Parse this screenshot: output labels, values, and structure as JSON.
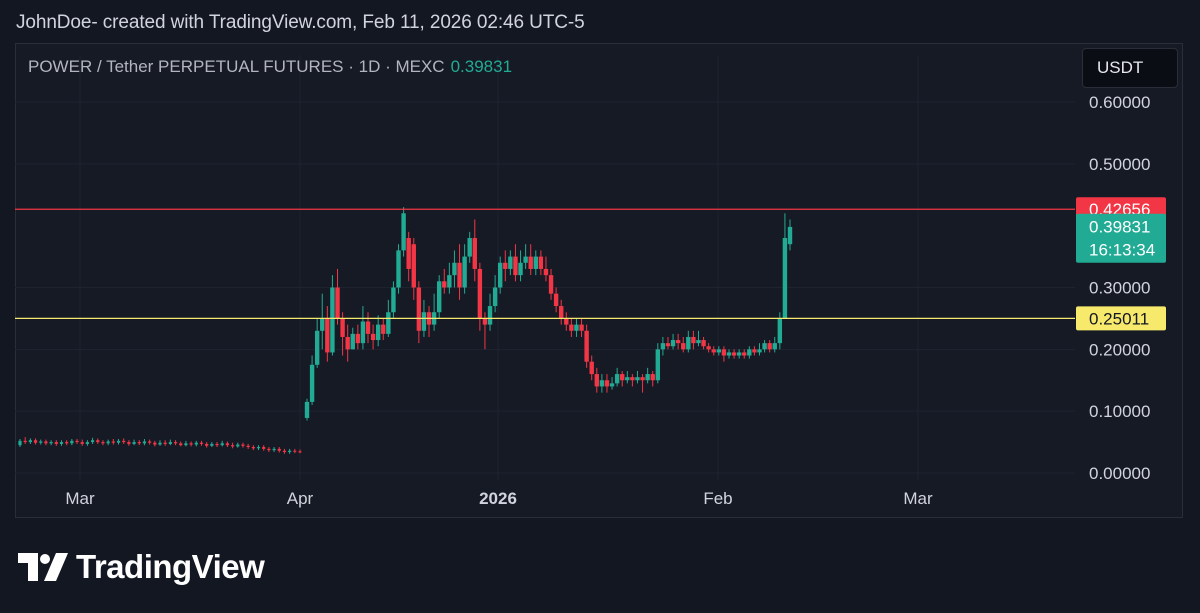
{
  "header": {
    "caption": "JohnDoe- created with TradingView.com, Feb 11, 2026 02:46 UTC-5"
  },
  "symbol": {
    "description": "POWER / Tether PERPETUAL FUTURES · 1D · MEXC",
    "last_price": "0.39831"
  },
  "currency_button": "USDT",
  "branding": {
    "logo_text": "TradingView",
    "logo_icon": "tradingview-logo-icon"
  },
  "colors": {
    "up": "#22ab94",
    "down": "#f23645",
    "background": "#131722",
    "resistance_line": "#f23645",
    "support_line": "#f7e96b",
    "axis_text": "#d1d4dc"
  },
  "chart_data": {
    "type": "candlestick",
    "title": "POWER / Tether PERPETUAL FUTURES · 1D · MEXC",
    "ylim": [
      0,
      0.62
    ],
    "y_ticks": [
      "0.60000",
      "0.50000",
      "0.30000",
      "0.20000",
      "0.10000",
      "0.00000"
    ],
    "x_ticks": [
      "Mar",
      "Apr",
      "2026",
      "Feb",
      "Mar"
    ],
    "horizontal_lines": [
      {
        "label": "0.42656",
        "value": 0.42656,
        "color": "#f23645",
        "label_bg": "#f23645",
        "label_color": "#ffffff"
      },
      {
        "label": "0.25011",
        "value": 0.25011,
        "color": "#f7e96b",
        "label_bg": "#f7e96b",
        "label_color": "#131722"
      }
    ],
    "last_price_label": {
      "price": "0.39831",
      "countdown": "16:13:34",
      "value": 0.39831
    },
    "candles": [
      [
        0.045,
        0.052,
        0.055,
        0.042
      ],
      [
        0.052,
        0.05,
        0.058,
        0.047
      ],
      [
        0.05,
        0.053,
        0.056,
        0.047
      ],
      [
        0.053,
        0.049,
        0.056,
        0.046
      ],
      [
        0.049,
        0.051,
        0.054,
        0.046
      ],
      [
        0.051,
        0.048,
        0.054,
        0.045
      ],
      [
        0.048,
        0.05,
        0.053,
        0.045
      ],
      [
        0.05,
        0.047,
        0.053,
        0.044
      ],
      [
        0.047,
        0.05,
        0.053,
        0.044
      ],
      [
        0.05,
        0.048,
        0.053,
        0.045
      ],
      [
        0.048,
        0.052,
        0.055,
        0.045
      ],
      [
        0.052,
        0.05,
        0.055,
        0.047
      ],
      [
        0.05,
        0.047,
        0.054,
        0.044
      ],
      [
        0.047,
        0.05,
        0.053,
        0.044
      ],
      [
        0.05,
        0.053,
        0.057,
        0.047
      ],
      [
        0.053,
        0.05,
        0.056,
        0.047
      ],
      [
        0.05,
        0.048,
        0.053,
        0.045
      ],
      [
        0.048,
        0.051,
        0.054,
        0.045
      ],
      [
        0.051,
        0.049,
        0.055,
        0.046
      ],
      [
        0.049,
        0.052,
        0.055,
        0.046
      ],
      [
        0.052,
        0.05,
        0.056,
        0.047
      ],
      [
        0.05,
        0.047,
        0.053,
        0.044
      ],
      [
        0.047,
        0.05,
        0.054,
        0.045
      ],
      [
        0.05,
        0.048,
        0.053,
        0.045
      ],
      [
        0.048,
        0.051,
        0.055,
        0.045
      ],
      [
        0.051,
        0.049,
        0.054,
        0.046
      ],
      [
        0.049,
        0.046,
        0.052,
        0.043
      ],
      [
        0.046,
        0.049,
        0.053,
        0.044
      ],
      [
        0.049,
        0.047,
        0.053,
        0.044
      ],
      [
        0.047,
        0.05,
        0.054,
        0.045
      ],
      [
        0.05,
        0.048,
        0.053,
        0.045
      ],
      [
        0.048,
        0.045,
        0.051,
        0.043
      ],
      [
        0.045,
        0.048,
        0.052,
        0.043
      ],
      [
        0.048,
        0.046,
        0.051,
        0.043
      ],
      [
        0.046,
        0.049,
        0.052,
        0.043
      ],
      [
        0.049,
        0.047,
        0.052,
        0.044
      ],
      [
        0.047,
        0.044,
        0.05,
        0.041
      ],
      [
        0.044,
        0.047,
        0.05,
        0.042
      ],
      [
        0.047,
        0.045,
        0.05,
        0.042
      ],
      [
        0.045,
        0.048,
        0.052,
        0.043
      ],
      [
        0.048,
        0.045,
        0.051,
        0.042
      ],
      [
        0.045,
        0.043,
        0.049,
        0.04
      ],
      [
        0.043,
        0.046,
        0.049,
        0.041
      ],
      [
        0.046,
        0.044,
        0.049,
        0.041
      ],
      [
        0.044,
        0.042,
        0.047,
        0.039
      ],
      [
        0.042,
        0.04,
        0.045,
        0.037
      ],
      [
        0.04,
        0.042,
        0.045,
        0.037
      ],
      [
        0.042,
        0.039,
        0.045,
        0.036
      ],
      [
        0.039,
        0.037,
        0.042,
        0.034
      ],
      [
        0.037,
        0.039,
        0.042,
        0.034
      ],
      [
        0.039,
        0.036,
        0.042,
        0.033
      ],
      [
        0.036,
        0.034,
        0.039,
        0.031
      ],
      [
        0.034,
        0.036,
        0.039,
        0.031
      ],
      [
        0.036,
        0.035,
        0.039,
        0.032
      ],
      [
        0.035,
        0.034,
        0.038,
        0.032
      ],
      [
        0.089,
        0.115,
        0.12,
        0.085
      ],
      [
        0.115,
        0.175,
        0.19,
        0.11
      ],
      [
        0.175,
        0.23,
        0.25,
        0.17
      ],
      [
        0.23,
        0.25,
        0.29,
        0.2
      ],
      [
        0.25,
        0.195,
        0.27,
        0.18
      ],
      [
        0.195,
        0.3,
        0.32,
        0.19
      ],
      [
        0.3,
        0.25,
        0.33,
        0.24
      ],
      [
        0.25,
        0.22,
        0.26,
        0.19
      ],
      [
        0.22,
        0.2,
        0.24,
        0.18
      ],
      [
        0.2,
        0.225,
        0.235,
        0.2
      ],
      [
        0.225,
        0.21,
        0.24,
        0.2
      ],
      [
        0.21,
        0.245,
        0.27,
        0.2
      ],
      [
        0.245,
        0.225,
        0.26,
        0.21
      ],
      [
        0.225,
        0.215,
        0.24,
        0.2
      ],
      [
        0.215,
        0.24,
        0.255,
        0.205
      ],
      [
        0.24,
        0.225,
        0.25,
        0.215
      ],
      [
        0.225,
        0.26,
        0.28,
        0.22
      ],
      [
        0.26,
        0.3,
        0.31,
        0.25
      ],
      [
        0.3,
        0.36,
        0.37,
        0.29
      ],
      [
        0.36,
        0.42,
        0.43,
        0.35
      ],
      [
        0.38,
        0.33,
        0.39,
        0.31
      ],
      [
        0.37,
        0.3,
        0.38,
        0.28
      ],
      [
        0.3,
        0.23,
        0.31,
        0.21
      ],
      [
        0.23,
        0.26,
        0.28,
        0.22
      ],
      [
        0.26,
        0.24,
        0.27,
        0.22
      ],
      [
        0.24,
        0.26,
        0.29,
        0.23
      ],
      [
        0.26,
        0.31,
        0.32,
        0.25
      ],
      [
        0.31,
        0.3,
        0.33,
        0.29
      ],
      [
        0.3,
        0.32,
        0.34,
        0.29
      ],
      [
        0.32,
        0.34,
        0.36,
        0.3
      ],
      [
        0.34,
        0.3,
        0.37,
        0.28
      ],
      [
        0.3,
        0.35,
        0.37,
        0.29
      ],
      [
        0.35,
        0.38,
        0.39,
        0.34
      ],
      [
        0.38,
        0.33,
        0.41,
        0.31
      ],
      [
        0.33,
        0.25,
        0.34,
        0.23
      ],
      [
        0.25,
        0.24,
        0.26,
        0.2
      ],
      [
        0.24,
        0.27,
        0.29,
        0.23
      ],
      [
        0.27,
        0.3,
        0.32,
        0.26
      ],
      [
        0.3,
        0.34,
        0.35,
        0.29
      ],
      [
        0.34,
        0.33,
        0.36,
        0.31
      ],
      [
        0.33,
        0.35,
        0.36,
        0.32
      ],
      [
        0.35,
        0.32,
        0.37,
        0.31
      ],
      [
        0.32,
        0.34,
        0.36,
        0.31
      ],
      [
        0.34,
        0.35,
        0.37,
        0.33
      ],
      [
        0.35,
        0.33,
        0.37,
        0.32
      ],
      [
        0.33,
        0.35,
        0.36,
        0.32
      ],
      [
        0.35,
        0.33,
        0.36,
        0.32
      ],
      [
        0.33,
        0.32,
        0.35,
        0.31
      ],
      [
        0.32,
        0.29,
        0.33,
        0.28
      ],
      [
        0.29,
        0.27,
        0.3,
        0.26
      ],
      [
        0.27,
        0.25,
        0.28,
        0.24
      ],
      [
        0.25,
        0.24,
        0.26,
        0.23
      ],
      [
        0.24,
        0.23,
        0.25,
        0.22
      ],
      [
        0.23,
        0.24,
        0.25,
        0.22
      ],
      [
        0.24,
        0.23,
        0.25,
        0.22
      ],
      [
        0.23,
        0.18,
        0.24,
        0.17
      ],
      [
        0.18,
        0.16,
        0.19,
        0.15
      ],
      [
        0.16,
        0.14,
        0.17,
        0.13
      ],
      [
        0.14,
        0.15,
        0.16,
        0.13
      ],
      [
        0.15,
        0.14,
        0.16,
        0.13
      ],
      [
        0.14,
        0.145,
        0.155,
        0.135
      ],
      [
        0.145,
        0.16,
        0.17,
        0.14
      ],
      [
        0.16,
        0.15,
        0.165,
        0.14
      ],
      [
        0.15,
        0.155,
        0.165,
        0.145
      ],
      [
        0.155,
        0.15,
        0.16,
        0.14
      ],
      [
        0.15,
        0.155,
        0.165,
        0.145
      ],
      [
        0.155,
        0.15,
        0.16,
        0.13
      ],
      [
        0.15,
        0.16,
        0.17,
        0.145
      ],
      [
        0.16,
        0.15,
        0.165,
        0.14
      ],
      [
        0.15,
        0.2,
        0.21,
        0.145
      ],
      [
        0.2,
        0.21,
        0.22,
        0.19
      ],
      [
        0.21,
        0.205,
        0.22,
        0.2
      ],
      [
        0.205,
        0.215,
        0.225,
        0.2
      ],
      [
        0.215,
        0.21,
        0.225,
        0.2
      ],
      [
        0.21,
        0.2,
        0.22,
        0.195
      ],
      [
        0.2,
        0.22,
        0.23,
        0.195
      ],
      [
        0.22,
        0.21,
        0.23,
        0.2
      ],
      [
        0.21,
        0.215,
        0.23,
        0.205
      ],
      [
        0.215,
        0.205,
        0.22,
        0.2
      ],
      [
        0.205,
        0.2,
        0.21,
        0.195
      ],
      [
        0.2,
        0.195,
        0.205,
        0.19
      ],
      [
        0.195,
        0.2,
        0.205,
        0.19
      ],
      [
        0.2,
        0.19,
        0.205,
        0.18
      ],
      [
        0.19,
        0.195,
        0.2,
        0.185
      ],
      [
        0.195,
        0.19,
        0.2,
        0.185
      ],
      [
        0.19,
        0.195,
        0.2,
        0.185
      ],
      [
        0.195,
        0.19,
        0.2,
        0.185
      ],
      [
        0.19,
        0.2,
        0.205,
        0.185
      ],
      [
        0.2,
        0.195,
        0.205,
        0.19
      ],
      [
        0.195,
        0.2,
        0.21,
        0.19
      ],
      [
        0.2,
        0.21,
        0.215,
        0.195
      ],
      [
        0.21,
        0.2,
        0.215,
        0.195
      ],
      [
        0.2,
        0.21,
        0.22,
        0.195
      ],
      [
        0.21,
        0.25,
        0.26,
        0.2
      ],
      [
        0.25,
        0.38,
        0.42,
        0.25
      ],
      [
        0.37,
        0.398,
        0.41,
        0.36
      ]
    ]
  }
}
